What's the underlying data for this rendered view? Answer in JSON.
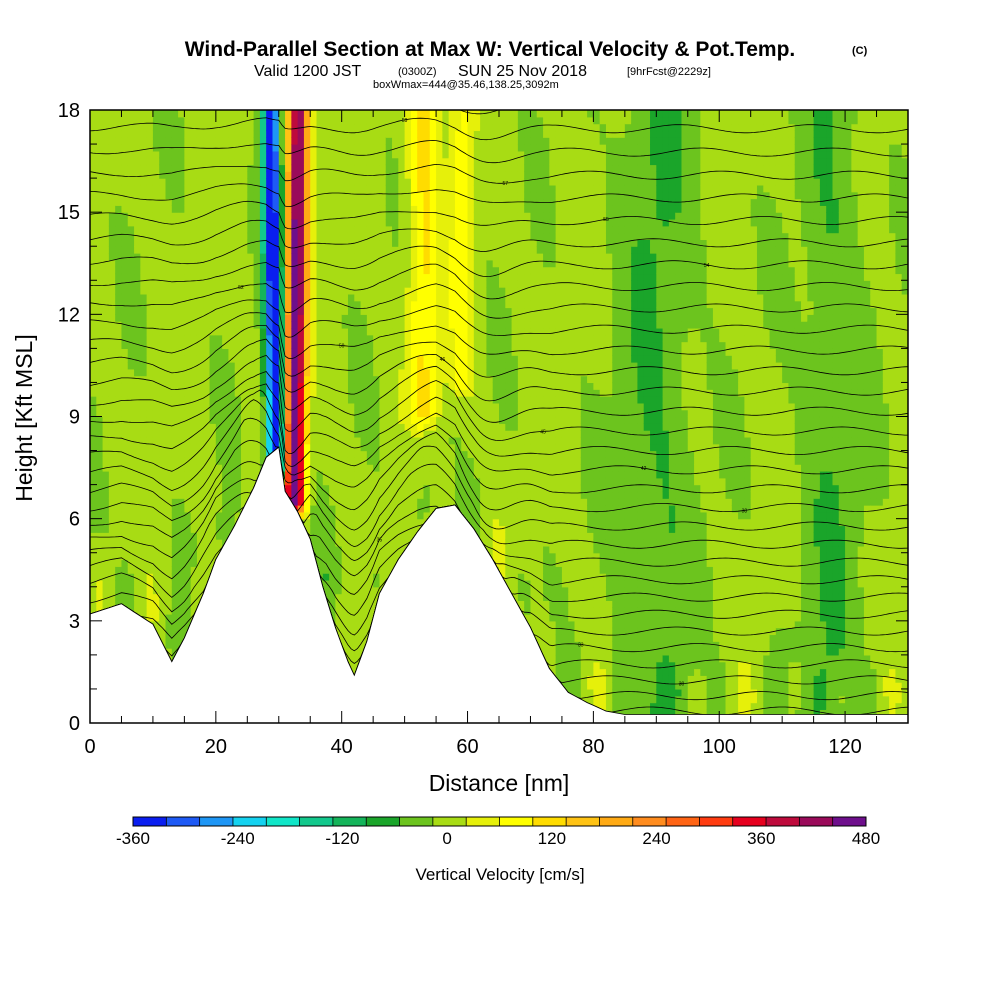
{
  "title": {
    "main": "Wind-Parallel Section at Max W: Vertical Velocity & Pot.Temp.",
    "copyright": "(C)",
    "valid_prefix": "Valid 1200 JST",
    "valid_utc": "(0300Z)",
    "valid_date": "SUN 25 Nov 2018",
    "forecast": "[9hrFcst@2229z]",
    "box": "boxWmax=444@35.46,138.25,3092m"
  },
  "chart_data": {
    "type": "heatmap",
    "xlabel": "Distance [nm]",
    "ylabel": "Height [Kft MSL]",
    "xlim": [
      0,
      130
    ],
    "ylim": [
      0,
      18
    ],
    "x_ticks": [
      0,
      20,
      40,
      60,
      80,
      100,
      120
    ],
    "y_ticks": [
      0,
      3,
      6,
      9,
      12,
      15,
      18
    ],
    "colorbar": {
      "label": "Vertical Velocity [cm/s]",
      "min": -360,
      "max": 480,
      "step": 40,
      "tick_values": [
        -360,
        -240,
        -120,
        0,
        120,
        240,
        360,
        480
      ],
      "tick_labels": [
        "-360",
        "-240",
        "-120",
        "0",
        "120",
        "240",
        "360",
        "480"
      ],
      "colors": [
        "#0a1ef0",
        "#1e5af5",
        "#1e96f5",
        "#14d2f0",
        "#10e6c8",
        "#12c88c",
        "#14b45a",
        "#1aa52a",
        "#6cc41e",
        "#a8dc14",
        "#e6f00a",
        "#ffff00",
        "#ffdc00",
        "#ffc314",
        "#ffaa14",
        "#ff8c1e",
        "#ff6414",
        "#ff3c10",
        "#e6001e",
        "#be0a3c",
        "#9a0a5a",
        "#6e0f8c"
      ]
    },
    "terrain_kft": [
      [
        0,
        3.2
      ],
      [
        5,
        3.5
      ],
      [
        10,
        2.9
      ],
      [
        13,
        1.8
      ],
      [
        15,
        2.5
      ],
      [
        18,
        3.8
      ],
      [
        20,
        4.8
      ],
      [
        23,
        5.8
      ],
      [
        26,
        6.9
      ],
      [
        28,
        7.8
      ],
      [
        30,
        8.1
      ],
      [
        31,
        6.8
      ],
      [
        33,
        6.2
      ],
      [
        35,
        5.4
      ],
      [
        37,
        4.0
      ],
      [
        39,
        2.8
      ],
      [
        41,
        1.8
      ],
      [
        42,
        1.4
      ],
      [
        44,
        2.4
      ],
      [
        46,
        3.8
      ],
      [
        49,
        4.8
      ],
      [
        52,
        5.6
      ],
      [
        55,
        6.3
      ],
      [
        58,
        6.4
      ],
      [
        61,
        5.7
      ],
      [
        64,
        4.8
      ],
      [
        67,
        3.8
      ],
      [
        70,
        2.8
      ],
      [
        73,
        1.6
      ],
      [
        76,
        0.9
      ],
      [
        79,
        0.6
      ],
      [
        82,
        0.35
      ],
      [
        85,
        0.25
      ],
      [
        90,
        0.25
      ],
      [
        110,
        0.25
      ],
      [
        130,
        0.25
      ]
    ],
    "w_features": [
      {
        "x": 32.8,
        "width_nm": 1.6,
        "z_base": 6.5,
        "z_top": 18,
        "w": 480
      },
      {
        "x": 29.2,
        "width_nm": 1.4,
        "z_base": 7.5,
        "z_top": 18,
        "w": -360
      },
      {
        "x": 53,
        "width_nm": 2.5,
        "z_base": 9,
        "z_top": 18,
        "w": 110
      },
      {
        "x": 59,
        "width_nm": 2.0,
        "z_base": 10,
        "z_top": 18,
        "w": 80
      },
      {
        "x": 90,
        "width_nm": 6.0,
        "z_base": 0,
        "z_top": 18,
        "w": -50
      },
      {
        "x": 118,
        "width_nm": 5.0,
        "z_base": 0,
        "z_top": 18,
        "w": -45
      }
    ],
    "theta_contours": {
      "count": 40,
      "label_values": [
        "24",
        "30",
        "33",
        "34",
        "35",
        "36",
        "38",
        "42",
        "45",
        "46",
        "50",
        "52",
        "54",
        "55",
        "57",
        "59",
        "62",
        "64",
        "66",
        "69",
        "72"
      ]
    }
  }
}
